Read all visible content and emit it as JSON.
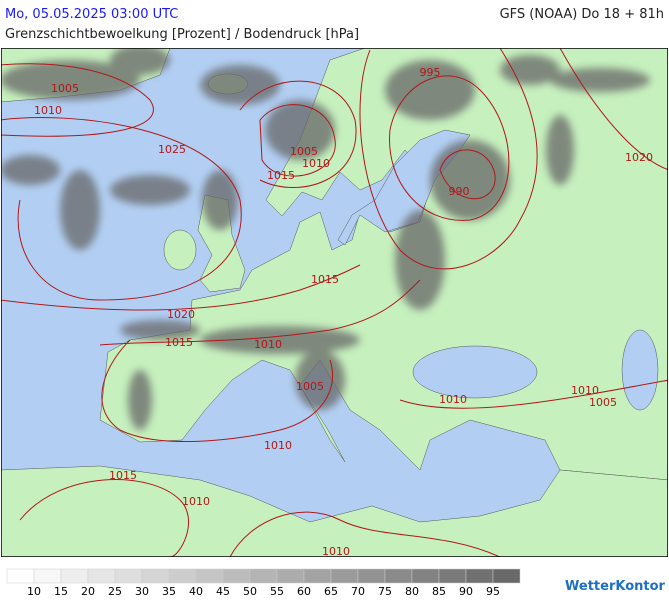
{
  "header": {
    "date": "Mo, 05.05.2025 03:00 UTC",
    "model": "GFS (NOAA) Do 18 + 81h",
    "subtitle": "Grenzschichtbewoelkung [Prozent] / Bodendruck [hPa]"
  },
  "isobar_labels": [
    1005,
    1010,
    995,
    1025,
    1005,
    1010,
    1015,
    990,
    1020,
    1015,
    1020,
    1015,
    1010,
    1005,
    1010,
    1010,
    1005,
    1010,
    1015,
    1010,
    1010
  ],
  "colorbar": {
    "ticks": [
      10,
      15,
      20,
      25,
      30,
      35,
      40,
      45,
      50,
      55,
      60,
      65,
      70,
      75,
      80,
      85,
      90,
      95
    ]
  },
  "logo": "WetterKontor"
}
